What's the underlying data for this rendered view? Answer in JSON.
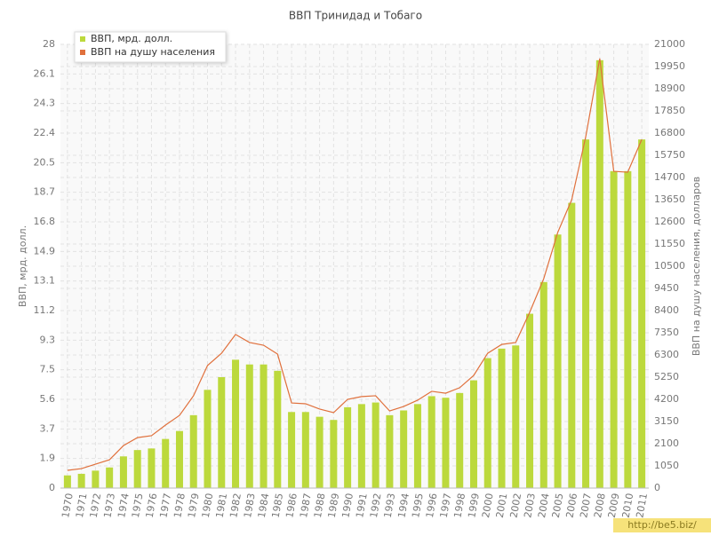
{
  "chart_data": {
    "type": "bar",
    "title": "ВВП Тринидад и Тобаго",
    "ylabel": "ВВП, мрд. долл.",
    "y2label": "ВВП на душу населения, долларов",
    "watermark": "http://be5.biz/",
    "grid": true,
    "legend": "upper left",
    "categories": [
      "1970",
      "1971",
      "1972",
      "1973",
      "1974",
      "1975",
      "1976",
      "1977",
      "1978",
      "1979",
      "1980",
      "1981",
      "1982",
      "1983",
      "1984",
      "1985",
      "1986",
      "1987",
      "1988",
      "1989",
      "1990",
      "1991",
      "1992",
      "1993",
      "1994",
      "1995",
      "1996",
      "1997",
      "1998",
      "1999",
      "2000",
      "2001",
      "2002",
      "2003",
      "2004",
      "2005",
      "2006",
      "2007",
      "2008",
      "2009",
      "2010",
      "2011"
    ],
    "series": [
      {
        "name": "ВВП, мрд. долл.",
        "type": "bar",
        "color": "#bcd93c",
        "values": [
          0.8,
          0.9,
          1.1,
          1.3,
          2.0,
          2.4,
          2.5,
          3.1,
          3.6,
          4.6,
          6.2,
          7.0,
          8.1,
          7.8,
          7.8,
          7.4,
          4.8,
          4.8,
          4.5,
          4.3,
          5.1,
          5.3,
          5.4,
          4.6,
          4.9,
          5.3,
          5.8,
          5.7,
          6.0,
          6.8,
          8.2,
          8.8,
          9.0,
          11.0,
          13.0,
          16.0,
          18.0,
          22.0,
          27.0,
          20.0,
          20.0,
          22.0
        ]
      },
      {
        "name": "ВВП на душу населения",
        "type": "line",
        "color": "#e0703c",
        "axis": "y2",
        "values": [
          840,
          920,
          1130,
          1340,
          2010,
          2390,
          2480,
          2980,
          3440,
          4370,
          5800,
          6380,
          7270,
          6890,
          6760,
          6340,
          4030,
          3990,
          3740,
          3570,
          4200,
          4330,
          4370,
          3650,
          3860,
          4160,
          4580,
          4490,
          4750,
          5330,
          6380,
          6800,
          6890,
          8320,
          9910,
          12100,
          13650,
          16630,
          20330,
          14990,
          14950,
          16500
        ]
      }
    ],
    "ylim": [
      0,
      28
    ],
    "yticks": [
      0,
      {
        "value": 1.8667,
        "label": "1.9"
      },
      {
        "value": 3.7333,
        "label": "3.7"
      },
      5.6,
      {
        "value": 7.4667,
        "label": "7.5"
      },
      {
        "value": 9.3333,
        "label": "9.3"
      },
      11.2,
      {
        "value": 13.0667,
        "label": "13.1"
      },
      {
        "value": 14.9333,
        "label": "14.9"
      },
      16.8,
      {
        "value": 18.6667,
        "label": "18.7"
      },
      {
        "value": 20.5333,
        "label": "20.5"
      },
      22.4,
      {
        "value": 24.2667,
        "label": "24.3"
      },
      {
        "value": 26.1333,
        "label": "26.1"
      },
      28
    ],
    "y2lim": [
      0,
      21000
    ],
    "y2ticks": [
      0,
      1050,
      2100,
      3150,
      4200,
      5250,
      6300,
      7350,
      8400,
      9450,
      10500,
      11550,
      12600,
      13650,
      14700,
      15750,
      16800,
      17850,
      18900,
      19950,
      21000
    ]
  }
}
